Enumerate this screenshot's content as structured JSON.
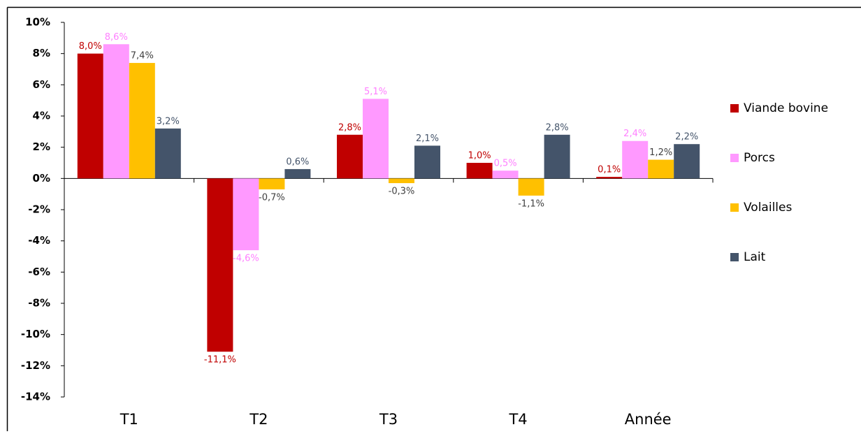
{
  "chart_data": {
    "type": "bar",
    "categories": [
      "T1",
      "T2",
      "T3",
      "T4",
      "Année"
    ],
    "series": [
      {
        "name": "Viande bovine",
        "color": "#c00000",
        "label_color": "#c00000",
        "values": [
          8.0,
          -11.1,
          2.8,
          1.0,
          0.1
        ],
        "value_labels": [
          "8,0%",
          "-11,1%",
          "2,8%",
          "1,0%",
          "0,1%"
        ]
      },
      {
        "name": "Porcs",
        "color": "#ff99ff",
        "label_color": "#ff80ff",
        "values": [
          8.6,
          -4.6,
          5.1,
          0.5,
          2.4
        ],
        "value_labels": [
          "8,6%",
          "-4,6%",
          "5,1%",
          "0,5%",
          "2,4%"
        ]
      },
      {
        "name": "Volailles",
        "color": "#ffc000",
        "label_color": "#404040",
        "values": [
          7.4,
          -0.7,
          -0.3,
          -1.1,
          1.2
        ],
        "value_labels": [
          "7,4%",
          "-0,7%",
          "-0,3%",
          "-1,1%",
          "1,2%"
        ]
      },
      {
        "name": "Lait",
        "color": "#44546a",
        "label_color": "#44546a",
        "values": [
          3.2,
          0.6,
          2.1,
          2.8,
          2.2
        ],
        "value_labels": [
          "3,2%",
          "0,6%",
          "2,1%",
          "2,8%",
          "2,2%"
        ]
      }
    ],
    "ylim": [
      -14,
      10
    ],
    "yticks": [
      {
        "value": -14,
        "label": "-14%"
      },
      {
        "value": -12,
        "label": "-12%"
      },
      {
        "value": -10,
        "label": "-10%"
      },
      {
        "value": -8,
        "label": "-8%"
      },
      {
        "value": -6,
        "label": "-6%"
      },
      {
        "value": -4,
        "label": "-4%"
      },
      {
        "value": -2,
        "label": "-2%"
      },
      {
        "value": 0,
        "label": "0%"
      },
      {
        "value": 2,
        "label": "2%"
      },
      {
        "value": 4,
        "label": "4%"
      },
      {
        "value": 6,
        "label": "6%"
      },
      {
        "value": 8,
        "label": "8%"
      },
      {
        "value": 10,
        "label": "10%"
      }
    ],
    "grid": false,
    "legend": "right"
  }
}
